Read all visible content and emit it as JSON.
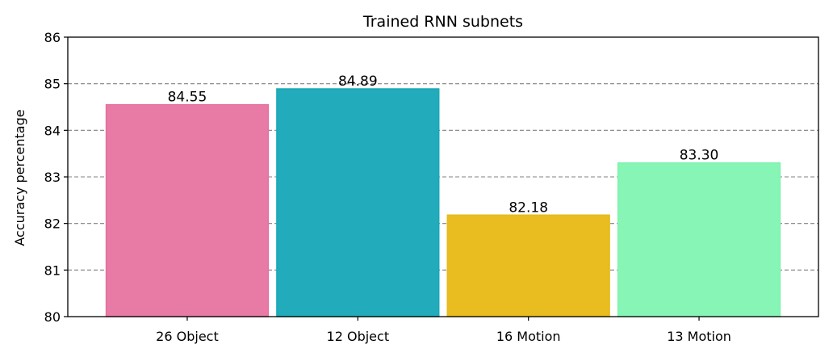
{
  "chart_data": {
    "type": "bar",
    "title": "Trained RNN subnets",
    "xlabel": "",
    "ylabel": "Accuracy percentage",
    "categories": [
      "26 Object",
      "12 Object",
      "16 Motion",
      "13 Motion"
    ],
    "values": [
      84.55,
      84.89,
      82.18,
      83.3
    ],
    "value_labels": [
      "84.55",
      "84.89",
      "82.18",
      "83.30"
    ],
    "colors": [
      "#e87aa6",
      "#22abbb",
      "#e9bd1f",
      "#87f5b5"
    ],
    "edge_colors": [
      "#e56fa0",
      "#1aa8b8",
      "#e6ba1a",
      "#7ff3ae"
    ],
    "ylim": [
      80,
      86
    ],
    "yticks": [
      80,
      81,
      82,
      83,
      84,
      85,
      86
    ],
    "ytick_labels": [
      "80",
      "81",
      "82",
      "83",
      "84",
      "85",
      "86"
    ],
    "grid": true
  }
}
